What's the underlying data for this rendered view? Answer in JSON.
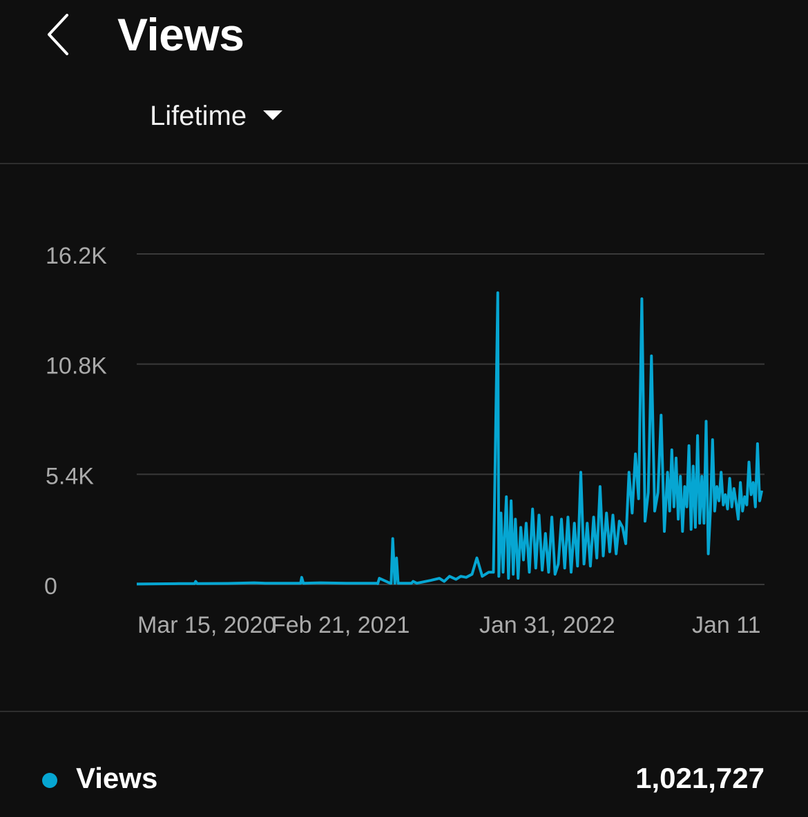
{
  "header": {
    "title": "Views",
    "back_icon": "chevron-left-icon"
  },
  "period": {
    "label": "Lifetime",
    "icon": "caret-down-icon"
  },
  "colors": {
    "background": "#0f0f0f",
    "series": "#06a6d2",
    "grid": "#3a3a3a",
    "axis_text": "#aaaaaa"
  },
  "chart_data": {
    "type": "line",
    "y_ticks": [
      "16.2K",
      "10.8K",
      "5.4K",
      "0"
    ],
    "x_ticks": [
      "Mar 15, 2020",
      "Feb 21, 2021",
      "Jan 31, 2022",
      "Jan 11"
    ],
    "ylim": [
      0,
      16200
    ],
    "grid": true,
    "series": [
      {
        "name": "Views",
        "x": [
          "2020-03-15",
          "2020-06-01",
          "2020-07-01",
          "2020-07-03",
          "2020-07-06",
          "2020-09-01",
          "2020-10-20",
          "2020-11-10",
          "2021-01-15",
          "2021-01-17",
          "2021-01-20",
          "2021-02-21",
          "2021-04-10",
          "2021-06-06",
          "2021-06-08",
          "2021-06-11",
          "2021-07-01",
          "2021-07-03",
          "2021-07-06",
          "2021-07-10",
          "2021-07-13",
          "2021-07-16",
          "2021-08-10",
          "2021-08-13",
          "2021-08-20",
          "2021-09-15",
          "2021-10-01",
          "2021-10-10",
          "2021-10-20",
          "2021-11-01",
          "2021-11-10",
          "2021-11-20",
          "2021-12-01",
          "2021-12-10",
          "2021-12-20",
          "2022-01-01",
          "2022-01-10",
          "2022-01-18",
          "2022-01-20",
          "2022-01-24",
          "2022-01-28",
          "2022-02-03",
          "2022-02-07",
          "2022-02-12",
          "2022-02-16",
          "2022-02-20",
          "2022-02-25",
          "2022-03-02",
          "2022-03-07",
          "2022-03-12",
          "2022-03-18",
          "2022-03-24",
          "2022-03-30",
          "2022-04-05",
          "2022-04-11",
          "2022-04-17",
          "2022-04-23",
          "2022-04-29",
          "2022-05-05",
          "2022-05-11",
          "2022-05-17",
          "2022-05-23",
          "2022-05-29",
          "2022-06-04",
          "2022-06-10",
          "2022-06-16",
          "2022-06-22",
          "2022-06-28",
          "2022-07-04",
          "2022-07-10",
          "2022-07-16",
          "2022-07-22",
          "2022-07-28",
          "2022-08-03",
          "2022-08-09",
          "2022-08-15",
          "2022-08-21",
          "2022-08-27",
          "2022-09-02",
          "2022-09-08",
          "2022-09-14",
          "2022-09-20",
          "2022-09-26",
          "2022-10-02",
          "2022-10-08",
          "2022-10-14",
          "2022-10-20",
          "2022-10-26",
          "2022-11-01",
          "2022-11-07",
          "2022-11-13",
          "2022-11-19",
          "2022-11-25",
          "2022-12-01",
          "2022-12-05",
          "2022-12-09",
          "2022-12-13",
          "2022-12-17",
          "2022-12-21",
          "2022-12-25",
          "2022-12-29",
          "2023-01-02",
          "2023-01-06",
          "2023-01-10",
          "2023-01-14",
          "2023-01-18",
          "2023-01-22",
          "2023-01-26",
          "2023-01-30",
          "2023-02-03",
          "2023-02-07",
          "2023-02-11",
          "2023-02-15",
          "2023-02-19",
          "2023-02-23",
          "2023-02-27",
          "2023-03-03",
          "2023-03-07",
          "2023-03-11",
          "2023-03-15",
          "2023-03-19",
          "2023-03-23",
          "2023-03-27",
          "2023-03-31",
          "2023-04-04",
          "2023-04-08",
          "2023-04-12",
          "2023-04-16",
          "2023-04-20",
          "2023-04-24",
          "2023-04-28",
          "2023-05-02",
          "2023-05-06",
          "2023-05-10",
          "2023-05-14",
          "2023-05-18",
          "2023-05-22",
          "2023-05-26"
        ],
        "values": [
          20,
          40,
          40,
          150,
          40,
          50,
          80,
          60,
          60,
          350,
          60,
          80,
          60,
          60,
          40,
          300,
          60,
          60,
          2250,
          60,
          1300,
          60,
          60,
          150,
          60,
          200,
          300,
          150,
          400,
          250,
          400,
          350,
          500,
          1300,
          400,
          600,
          600,
          14300,
          400,
          3500,
          600,
          4300,
          300,
          4100,
          500,
          3200,
          300,
          2800,
          1200,
          3000,
          600,
          3700,
          800,
          3400,
          700,
          2500,
          600,
          3300,
          500,
          1000,
          3200,
          800,
          3300,
          600,
          3000,
          900,
          5500,
          1000,
          3000,
          900,
          3300,
          1300,
          4800,
          1400,
          3500,
          1600,
          3400,
          1500,
          3100,
          2800,
          2000,
          5500,
          3500,
          6400,
          4200,
          14000,
          3100,
          4500,
          11200,
          3600,
          4500,
          8300,
          2600,
          5500,
          3600,
          6600,
          3800,
          6200,
          3200,
          5300,
          2600,
          4800,
          3800,
          6800,
          2700,
          5800,
          2800,
          7300,
          3000,
          5300,
          3000,
          8000,
          1500,
          3600,
          7100,
          3600,
          4800,
          4100,
          5500,
          3900,
          4400,
          3700,
          5200,
          3800,
          4700,
          4000,
          3200,
          5000,
          3600,
          4300,
          3900,
          6000,
          4400,
          5000,
          3800,
          6900,
          4100,
          4600
        ]
      }
    ]
  },
  "summary": {
    "metric_label": "Views",
    "total": "1,021,727"
  }
}
